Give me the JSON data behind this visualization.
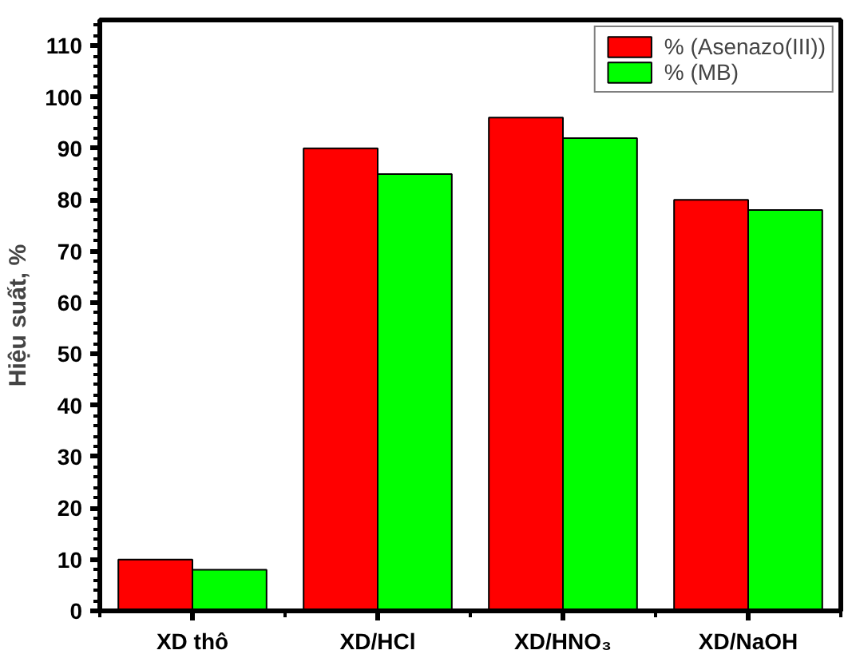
{
  "chart_data": {
    "type": "bar",
    "ylabel": "Hiệu suất, %",
    "categories": [
      "XD thô",
      "XD/HCl",
      "XD/HNO₃",
      "XD/NaOH"
    ],
    "series": [
      {
        "name": "% (Asenazo(III))",
        "color": "#ff0000",
        "values": [
          10,
          90,
          96,
          80
        ]
      },
      {
        "name": "% (MB)",
        "color": "#00ff00",
        "values": [
          8,
          85,
          92,
          78
        ]
      }
    ],
    "ylim": [
      0,
      115
    ],
    "yticks": [
      0,
      10,
      20,
      30,
      40,
      50,
      60,
      70,
      80,
      90,
      100,
      110
    ],
    "grid": false,
    "legend": "top right"
  }
}
